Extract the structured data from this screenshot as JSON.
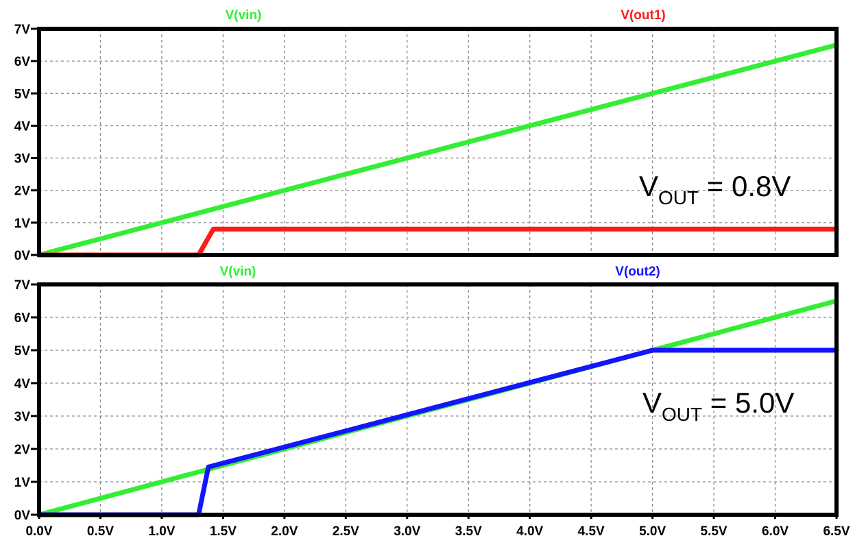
{
  "chart_data": [
    {
      "type": "line",
      "xlim": [
        0,
        6.5
      ],
      "ylim": [
        0,
        7
      ],
      "grid": true,
      "x_ticks": [
        "0.0V",
        "0.5V",
        "1.0V",
        "1.5V",
        "2.0V",
        "2.5V",
        "3.0V",
        "3.5V",
        "4.0V",
        "4.5V",
        "5.0V",
        "5.5V",
        "6.0V",
        "6.5V"
      ],
      "y_ticks": [
        "0V",
        "1V",
        "2V",
        "3V",
        "4V",
        "5V",
        "6V",
        "7V"
      ],
      "series": [
        {
          "name": "V(vin)",
          "color": "#33ee33",
          "x": [
            0,
            6.5
          ],
          "y": [
            0,
            6.5
          ]
        },
        {
          "name": "V(out1)",
          "color": "#ff1a1a",
          "x": [
            0,
            1.3,
            1.42,
            6.5
          ],
          "y": [
            0,
            0,
            0.8,
            0.8
          ]
        }
      ],
      "annotation": {
        "main": "V",
        "sub": "OUT",
        "value": " = 0.8V"
      }
    },
    {
      "type": "line",
      "xlim": [
        0,
        6.5
      ],
      "ylim": [
        0,
        7
      ],
      "grid": true,
      "x_ticks": [
        "0.0V",
        "0.5V",
        "1.0V",
        "1.5V",
        "2.0V",
        "2.5V",
        "3.0V",
        "3.5V",
        "4.0V",
        "4.5V",
        "5.0V",
        "5.5V",
        "6.0V",
        "6.5V"
      ],
      "y_ticks": [
        "0V",
        "1V",
        "2V",
        "3V",
        "4V",
        "5V",
        "6V",
        "7V"
      ],
      "series": [
        {
          "name": "V(vin)",
          "color": "#33ee33",
          "x": [
            0,
            6.5
          ],
          "y": [
            0,
            6.5
          ]
        },
        {
          "name": "V(out2)",
          "color": "#1414ff",
          "x": [
            0,
            1.3,
            1.38,
            5.0,
            6.5
          ],
          "y": [
            0,
            0,
            1.45,
            5.0,
            5.0
          ]
        }
      ],
      "annotation": {
        "main": "V",
        "sub": "OUT",
        "value": " = 5.0V"
      }
    }
  ]
}
